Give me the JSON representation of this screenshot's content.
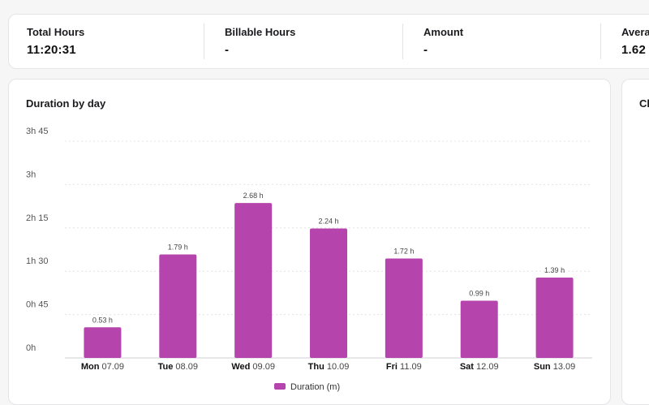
{
  "stats": [
    {
      "label": "Total Hours",
      "value": "11:20:31"
    },
    {
      "label": "Billable Hours",
      "value": "-"
    },
    {
      "label": "Amount",
      "value": "-"
    },
    {
      "label": "Avera",
      "value": "1.62"
    }
  ],
  "side_card_title": "Cl",
  "colors": {
    "bar": "#b544ad"
  },
  "chart_data": {
    "type": "bar",
    "title": "Duration by day",
    "categories": [
      {
        "day": "Mon",
        "date": "07.09"
      },
      {
        "day": "Tue",
        "date": "08.09"
      },
      {
        "day": "Wed",
        "date": "09.09"
      },
      {
        "day": "Thu",
        "date": "10.09"
      },
      {
        "day": "Fri",
        "date": "11.09"
      },
      {
        "day": "Sat",
        "date": "12.09"
      },
      {
        "day": "Sun",
        "date": "13.09"
      }
    ],
    "values": [
      0.53,
      1.79,
      2.68,
      2.24,
      1.72,
      0.99,
      1.39
    ],
    "data_labels": [
      "0.53 h",
      "1.79 h",
      "2.68 h",
      "2.24 h",
      "1.72 h",
      "0.99 h",
      "1.39 h"
    ],
    "y_ticks": [
      {
        "value": 0,
        "label": "0h"
      },
      {
        "value": 0.75,
        "label": "0h 45"
      },
      {
        "value": 1.5,
        "label": "1h 30"
      },
      {
        "value": 2.25,
        "label": "2h 15"
      },
      {
        "value": 3,
        "label": "3h"
      },
      {
        "value": 3.75,
        "label": "3h 45"
      }
    ],
    "ylim": [
      0,
      3.75
    ],
    "grid": true,
    "legend": {
      "label": "Duration",
      "unit": "(m)",
      "placement": "bottom-center"
    }
  }
}
